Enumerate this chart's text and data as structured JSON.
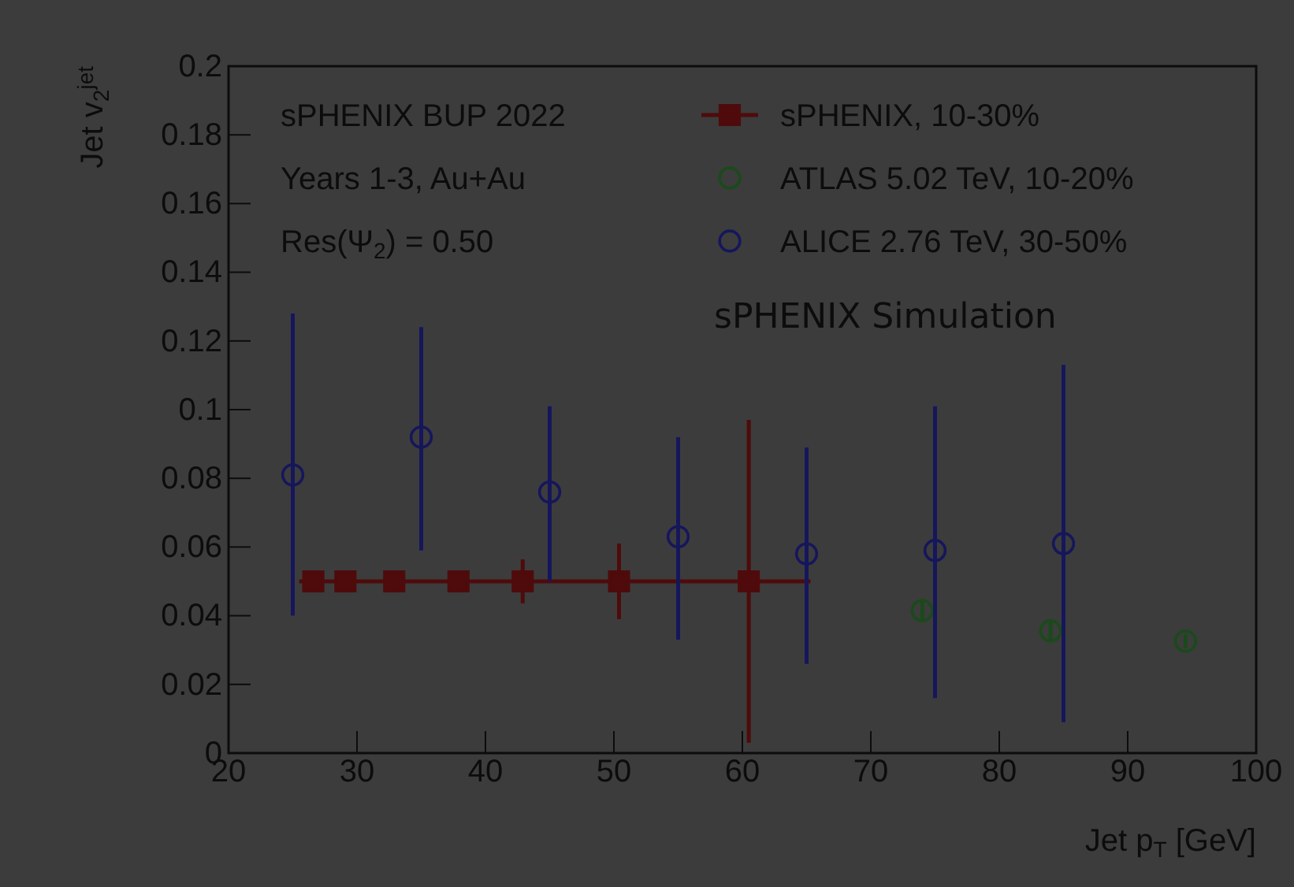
{
  "chart_data": {
    "type": "scatter",
    "xlabel": "Jet p$_{T}$ [GeV]",
    "ylabel": "Jet v$_{2}$$^{jet}$",
    "xlim": [
      20,
      100
    ],
    "xticks": [
      20,
      30,
      40,
      50,
      60,
      70,
      80,
      90,
      100
    ],
    "ylim": [
      0,
      0.2
    ],
    "yticks": [
      0,
      0.02,
      0.04,
      0.06,
      0.08,
      0.1,
      0.12,
      0.14,
      0.16,
      0.18,
      0.2
    ],
    "legend": "top right",
    "annotations": [
      "sPHENIX BUP 2022",
      "Years 1-3, Au+Au",
      "Res(Ψ$_{2}$) = 0.50",
      "sPHENIX Simulation"
    ],
    "series": [
      {
        "name": "sPHENIX, 10-30%",
        "type": "line",
        "marker": "square",
        "color": "#4f0b0b",
        "x": [
          26.6,
          29.1,
          32.9,
          37.9,
          42.9,
          50.4,
          60.5
        ],
        "values": [
          0.05,
          0.05,
          0.05,
          0.05,
          0.05,
          0.05,
          0.05
        ],
        "errors": [
          null,
          null,
          null,
          0.001,
          0.0064,
          0.011,
          0.047
        ],
        "xerrors": [
          [
            25.5,
            26.6
          ],
          null,
          null,
          null,
          null,
          null,
          [
            60.5,
            65.3
          ]
        ]
      },
      {
        "name": "ATLAS 5.02 TeV, 10-20%",
        "type": "scatter",
        "marker": "circle",
        "color": "#1a4a1a",
        "x": [
          74,
          84,
          94.5
        ],
        "values": [
          0.0415,
          0.0356,
          0.0326
        ],
        "errors": [
          0.003,
          0.003,
          0.002
        ]
      },
      {
        "name": "ALICE 2.76 TeV, 30-50%",
        "type": "scatter",
        "marker": "circle",
        "color": "#16165c",
        "x": [
          25,
          35,
          45,
          55,
          65,
          75,
          85
        ],
        "values": [
          0.081,
          0.092,
          0.076,
          0.063,
          0.058,
          0.059,
          0.061
        ],
        "errors": [
          [
            0.04,
            0.128
          ],
          [
            0.059,
            0.124
          ],
          [
            0.05,
            0.101
          ],
          [
            0.033,
            0.092
          ],
          [
            0.026,
            0.089
          ],
          [
            0.016,
            0.101
          ],
          [
            0.009,
            0.113
          ]
        ]
      }
    ]
  }
}
